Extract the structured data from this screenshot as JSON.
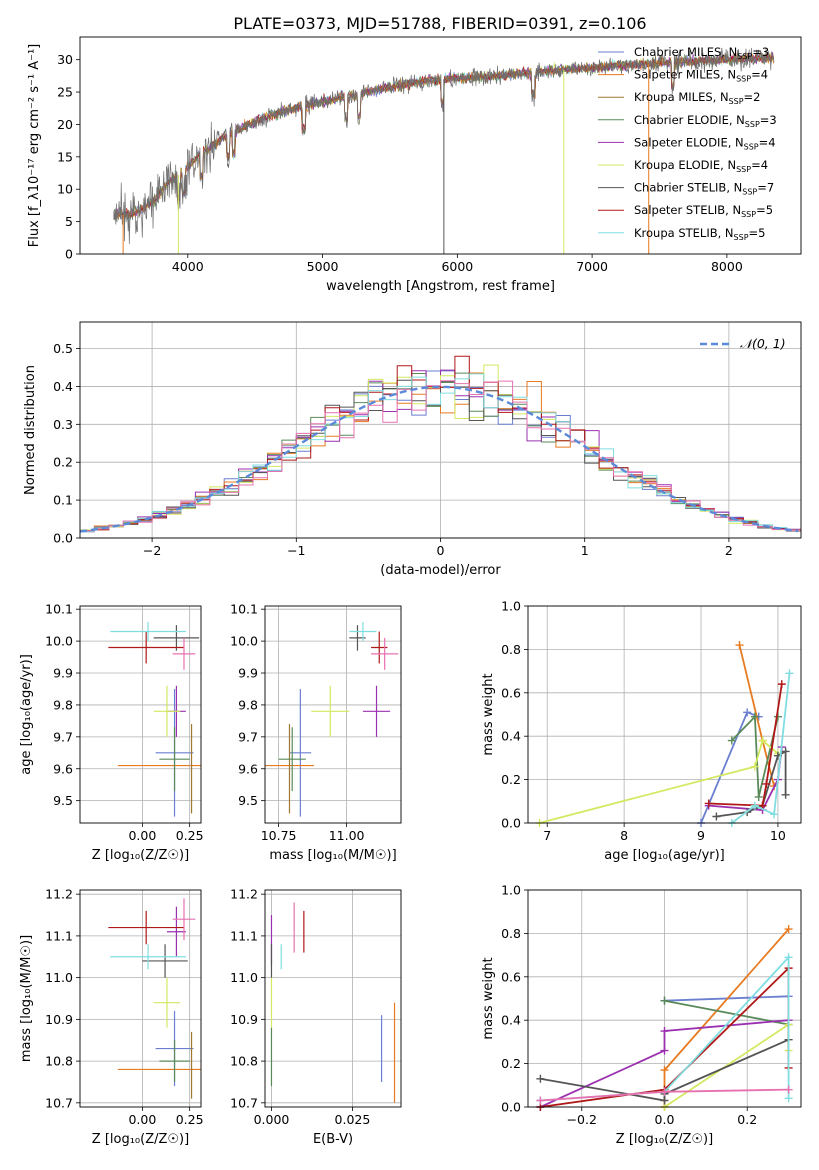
{
  "suptitle": "PLATE=0373, MJD=51788, FIBERID=0391, z=0.106",
  "colors": {
    "Chabrier MILES": "#6a7fd0",
    "Salpeter MILES": "#e87a20",
    "Kroupa MILES": "#a07830",
    "Chabrier ELODIE": "#5a8a5a",
    "Salpeter ELODIE": "#9a30b0",
    "Kroupa ELODIE": "#d4e860",
    "Chabrier STELIB": "#555555",
    "Salpeter STELIB": "#b01818",
    "Kroupa STELIB": "#80dde0",
    "pink": "#e870b0",
    "normal": "#5b8bd8",
    "grid": "#b0b0b0"
  },
  "chart_data": [
    {
      "type": "line",
      "panel": "spectrum",
      "xlabel": "wavelength [Angstrom, rest frame]",
      "ylabel": "Flux [f_λ10⁻¹⁷ erg cm⁻² s⁻¹ A⁻¹]",
      "xlim": [
        3200,
        8550
      ],
      "ylim": [
        0,
        33.5
      ],
      "xticks": [
        "4000",
        "5000",
        "6000",
        "7000",
        "8000"
      ],
      "yticks": [
        "0",
        "5",
        "10",
        "15",
        "20",
        "25",
        "30"
      ],
      "continuum": {
        "x": [
          3450,
          3550,
          3650,
          3750,
          3850,
          3950,
          4100,
          4300,
          4500,
          4700,
          4900,
          5100,
          5300,
          5500,
          5700,
          5900,
          6100,
          6300,
          6500,
          6700,
          6900,
          7100,
          7300,
          7500,
          7800,
          8100,
          8350
        ],
        "y": [
          6.2,
          6.0,
          6.8,
          8.2,
          11.0,
          12.5,
          15.5,
          18.5,
          20.5,
          22.0,
          23.0,
          24.0,
          24.8,
          25.8,
          26.5,
          27.0,
          27.2,
          27.5,
          28.0,
          28.3,
          28.6,
          28.9,
          29.2,
          29.5,
          29.8,
          30.2,
          30.3
        ]
      },
      "legend": {
        "placement": "upper right",
        "entries": [
          "Chabrier MILES, N_SSP=3",
          "Salpeter MILES, N_SSP=4",
          "Kroupa MILES, N_SSP=2",
          "Chabrier ELODIE, N_SSP=3",
          "Salpeter ELODIE, N_SSP=4",
          "Kroupa ELODIE, N_SSP=4",
          "Chabrier STELIB, N_SSP=7",
          "Salpeter STELIB, N_SSP=5",
          "Kroupa STELIB, N_SSP=5"
        ]
      },
      "legend_items": [
        {
          "base": "Chabrier MILES, N",
          "sub": "SSP",
          "tail": "=3",
          "color": "#6a7fd0"
        },
        {
          "base": "Salpeter MILES, N",
          "sub": "SSP",
          "tail": "=4",
          "color": "#e87a20"
        },
        {
          "base": "Kroupa MILES, N",
          "sub": "SSP",
          "tail": "=2",
          "color": "#a07830"
        },
        {
          "base": "Chabrier ELODIE, N",
          "sub": "SSP",
          "tail": "=3",
          "color": "#5a8a5a"
        },
        {
          "base": "Salpeter ELODIE, N",
          "sub": "SSP",
          "tail": "=4",
          "color": "#9a30b0"
        },
        {
          "base": "Kroupa ELODIE, N",
          "sub": "SSP",
          "tail": "=4",
          "color": "#d4e860"
        },
        {
          "base": "Chabrier STELIB, N",
          "sub": "SSP",
          "tail": "=7",
          "color": "#555555"
        },
        {
          "base": "Salpeter STELIB, N",
          "sub": "SSP",
          "tail": "=5",
          "color": "#b01818"
        },
        {
          "base": "Kroupa STELIB, N",
          "sub": "SSP",
          "tail": "=5",
          "color": "#80dde0"
        }
      ]
    },
    {
      "type": "line",
      "panel": "residuals",
      "xlabel": "(data-model)/error",
      "ylabel": "Normed distribution",
      "xlim": [
        -2.5,
        2.5
      ],
      "ylim": [
        0,
        0.57
      ],
      "xticks": [
        "−2",
        "−1",
        "0",
        "1",
        "2"
      ],
      "yticks": [
        "0.0",
        "0.1",
        "0.2",
        "0.3",
        "0.4",
        "0.5"
      ],
      "legend": [
        "𝒩(0, 1)"
      ],
      "bin_width": 0.1
    },
    {
      "type": "scatter",
      "panel": "age-vs-Z",
      "xlabel": "Z [log₁₀(Z/Z☉)]",
      "ylabel": "age  [log₁₀(age/yr)]",
      "xlim": [
        -0.33,
        0.31
      ],
      "ylim": [
        9.43,
        10.11
      ],
      "xticks": [
        "0.00",
        "0.25"
      ],
      "yticks": [
        "9.5",
        "9.6",
        "9.7",
        "9.8",
        "9.9",
        "10.0",
        "10.1"
      ],
      "points": [
        {
          "model": "Chabrier MILES",
          "x": 0.17,
          "y": 9.65,
          "xerr": 0.1,
          "yerr": 0.2
        },
        {
          "model": "Salpeter MILES",
          "x": 0.12,
          "y": 9.61,
          "xerr": 0.25,
          "yerr": 0.0
        },
        {
          "model": "Kroupa MILES",
          "x": 0.26,
          "y": 9.6,
          "xerr": 0.0,
          "yerr": 0.14
        },
        {
          "model": "Chabrier ELODIE",
          "x": 0.17,
          "y": 9.63,
          "xerr": 0.08,
          "yerr": 0.1
        },
        {
          "model": "Salpeter ELODIE",
          "x": 0.18,
          "y": 9.78,
          "xerr": 0.05,
          "yerr": 0.08
        },
        {
          "model": "Kroupa ELODIE",
          "x": 0.13,
          "y": 9.78,
          "xerr": 0.07,
          "yerr": 0.08
        },
        {
          "model": "Chabrier STELIB",
          "x": 0.18,
          "y": 10.01,
          "xerr": 0.12,
          "yerr": 0.04
        },
        {
          "model": "Salpeter STELIB",
          "x": 0.02,
          "y": 9.98,
          "xerr": 0.2,
          "yerr": 0.05
        },
        {
          "model": "Kroupa STELIB",
          "x": 0.03,
          "y": 10.03,
          "xerr": 0.2,
          "yerr": 0.03
        },
        {
          "model": "pink",
          "x": 0.22,
          "y": 9.96,
          "xerr": 0.06,
          "yerr": 0.05
        }
      ]
    },
    {
      "type": "scatter",
      "panel": "age-vs-mass",
      "xlabel": "mass [log₁₀(M/M☉)]",
      "ylabel": "",
      "xlim": [
        10.7,
        11.2
      ],
      "ylim": [
        9.43,
        10.11
      ],
      "xticks": [
        "10.75",
        "11.00"
      ],
      "yticks": [
        "9.5",
        "9.6",
        "9.7",
        "9.8",
        "9.9",
        "10.0",
        "10.1"
      ],
      "points": [
        {
          "model": "Chabrier MILES",
          "x": 10.83,
          "y": 9.65,
          "xerr": 0.04,
          "yerr": 0.2
        },
        {
          "model": "Salpeter MILES",
          "x": 10.78,
          "y": 9.61,
          "xerr": 0.1,
          "yerr": 0.0
        },
        {
          "model": "Kroupa MILES",
          "x": 10.79,
          "y": 9.6,
          "xerr": 0.0,
          "yerr": 0.14
        },
        {
          "model": "Chabrier ELODIE",
          "x": 10.8,
          "y": 9.63,
          "xerr": 0.05,
          "yerr": 0.1
        },
        {
          "model": "Salpeter ELODIE",
          "x": 11.11,
          "y": 9.78,
          "xerr": 0.05,
          "yerr": 0.08
        },
        {
          "model": "Kroupa ELODIE",
          "x": 10.94,
          "y": 9.78,
          "xerr": 0.07,
          "yerr": 0.08
        },
        {
          "model": "Chabrier STELIB",
          "x": 11.04,
          "y": 10.01,
          "xerr": 0.03,
          "yerr": 0.04
        },
        {
          "model": "Salpeter STELIB",
          "x": 11.12,
          "y": 9.98,
          "xerr": 0.03,
          "yerr": 0.05
        },
        {
          "model": "Kroupa STELIB",
          "x": 11.06,
          "y": 10.03,
          "xerr": 0.05,
          "yerr": 0.03
        },
        {
          "model": "pink",
          "x": 11.14,
          "y": 9.96,
          "xerr": 0.05,
          "yerr": 0.05
        }
      ]
    },
    {
      "type": "line",
      "panel": "weight-vs-age",
      "xlabel": "age  [log₁₀(age/yr)]",
      "ylabel": "mass weight",
      "xlim": [
        6.75,
        10.3
      ],
      "ylim": [
        0,
        1
      ],
      "xticks": [
        "7",
        "8",
        "9",
        "10"
      ],
      "yticks": [
        "0.0",
        "0.2",
        "0.4",
        "0.6",
        "0.8",
        "1.0"
      ],
      "series": [
        {
          "model": "Chabrier MILES",
          "x": [
            9.0,
            9.6,
            9.75
          ],
          "y": [
            0.0,
            0.51,
            0.49
          ]
        },
        {
          "model": "Salpeter MILES",
          "x": [
            9.5,
            9.8,
            9.95
          ],
          "y": [
            0.82,
            0.38,
            0.17
          ]
        },
        {
          "model": "Chabrier ELODIE",
          "x": [
            9.4,
            9.7,
            9.75,
            10.0
          ],
          "y": [
            0.38,
            0.49,
            0.12,
            0.49
          ]
        },
        {
          "model": "Salpeter ELODIE",
          "x": [
            9.1,
            9.8,
            10.0,
            10.05
          ],
          "y": [
            0.08,
            0.06,
            0.2,
            0.35
          ]
        },
        {
          "model": "Kroupa ELODIE",
          "x": [
            6.9,
            9.7,
            9.8,
            10.0
          ],
          "y": [
            0.0,
            0.26,
            0.38,
            0.32
          ]
        },
        {
          "model": "Chabrier STELIB",
          "x": [
            9.2,
            9.6,
            9.8,
            10.0,
            10.1,
            10.1
          ],
          "y": [
            0.03,
            0.05,
            0.08,
            0.31,
            0.33,
            0.13
          ]
        },
        {
          "model": "Salpeter STELIB",
          "x": [
            9.1,
            9.8,
            9.85,
            10.05
          ],
          "y": [
            0.09,
            0.08,
            0.18,
            0.64
          ]
        },
        {
          "model": "Kroupa STELIB",
          "x": [
            9.4,
            9.7,
            9.95,
            10.15
          ],
          "y": [
            0.0,
            0.08,
            0.04,
            0.69
          ]
        }
      ]
    },
    {
      "type": "scatter",
      "panel": "mass-vs-Z",
      "xlabel": "Z [log₁₀(Z/Z☉)]",
      "ylabel": "mass [log₁₀(M/M☉)]",
      "xlim": [
        -0.33,
        0.31
      ],
      "ylim": [
        10.69,
        11.21
      ],
      "xticks": [
        "0.00",
        "0.25"
      ],
      "yticks": [
        "10.7",
        "10.8",
        "10.9",
        "11.0",
        "11.1",
        "11.2"
      ],
      "points": [
        {
          "model": "Chabrier MILES",
          "x": 0.17,
          "y": 10.83,
          "xerr": 0.1,
          "yerr": 0.09
        },
        {
          "model": "Salpeter MILES",
          "x": 0.12,
          "y": 10.78,
          "xerr": 0.25,
          "yerr": 0.0
        },
        {
          "model": "Kroupa MILES",
          "x": 0.26,
          "y": 10.79,
          "xerr": 0.0,
          "yerr": 0.08
        },
        {
          "model": "Chabrier ELODIE",
          "x": 0.17,
          "y": 10.8,
          "xerr": 0.08,
          "yerr": 0.05
        },
        {
          "model": "Salpeter ELODIE",
          "x": 0.18,
          "y": 11.11,
          "xerr": 0.05,
          "yerr": 0.06
        },
        {
          "model": "Kroupa ELODIE",
          "x": 0.13,
          "y": 10.94,
          "xerr": 0.07,
          "yerr": 0.06
        },
        {
          "model": "Chabrier STELIB",
          "x": 0.12,
          "y": 11.04,
          "xerr": 0.12,
          "yerr": 0.04
        },
        {
          "model": "Salpeter STELIB",
          "x": 0.02,
          "y": 11.12,
          "xerr": 0.2,
          "yerr": 0.04
        },
        {
          "model": "Kroupa STELIB",
          "x": 0.03,
          "y": 11.05,
          "xerr": 0.2,
          "yerr": 0.03
        },
        {
          "model": "pink",
          "x": 0.22,
          "y": 11.14,
          "xerr": 0.06,
          "yerr": 0.05
        }
      ]
    },
    {
      "type": "scatter",
      "panel": "mass-vs-EBV",
      "xlabel": "E(B-V)",
      "ylabel": "",
      "xlim": [
        -0.002,
        0.04
      ],
      "ylim": [
        10.69,
        11.21
      ],
      "xticks": [
        "0.000",
        "0.025"
      ],
      "yticks": [
        "10.7",
        "10.8",
        "10.9",
        "11.0",
        "11.1",
        "11.2"
      ],
      "points": [
        {
          "model": "Chabrier MILES",
          "x": 0.034,
          "y": 10.83,
          "yerr": 0.08
        },
        {
          "model": "Salpeter MILES",
          "x": 0.038,
          "y": 10.82,
          "yerr": 0.12
        },
        {
          "model": "Chabrier ELODIE",
          "x": 0.0,
          "y": 10.81,
          "yerr": 0.07
        },
        {
          "model": "Salpeter ELODIE",
          "x": 0.0,
          "y": 11.09,
          "yerr": 0.06
        },
        {
          "model": "Kroupa ELODIE",
          "x": 0.0,
          "y": 10.94,
          "yerr": 0.06
        },
        {
          "model": "Chabrier STELIB",
          "x": 0.0,
          "y": 11.04,
          "yerr": 0.04
        },
        {
          "model": "Salpeter STELIB",
          "x": 0.01,
          "y": 11.11,
          "yerr": 0.05
        },
        {
          "model": "Kroupa STELIB",
          "x": 0.003,
          "y": 11.05,
          "yerr": 0.03
        },
        {
          "model": "pink",
          "x": 0.007,
          "y": 11.12,
          "yerr": 0.06
        }
      ]
    },
    {
      "type": "line",
      "panel": "weight-vs-Z",
      "xlabel": "Z [log₁₀(Z/Z☉)]",
      "ylabel": "mass weight",
      "xlim": [
        -0.33,
        0.33
      ],
      "ylim": [
        0,
        1
      ],
      "xticks": [
        "−0.2",
        "0.0",
        "0.2"
      ],
      "yticks": [
        "0.0",
        "0.2",
        "0.4",
        "0.6",
        "0.8",
        "1.0"
      ],
      "series": [
        {
          "model": "Chabrier MILES",
          "x": [
            0.0,
            0.3
          ],
          "y": [
            0.49,
            0.51
          ]
        },
        {
          "model": "Salpeter MILES",
          "x": [
            0.0,
            0.0,
            0.3
          ],
          "y": [
            0.0,
            0.17,
            0.82
          ]
        },
        {
          "model": "Chabrier ELODIE",
          "x": [
            0.0,
            0.3
          ],
          "y": [
            0.49,
            0.38
          ]
        },
        {
          "model": "Salpeter ELODIE",
          "x": [
            -0.3,
            0.0,
            0.0,
            0.3
          ],
          "y": [
            0.0,
            0.26,
            0.35,
            0.4
          ]
        },
        {
          "model": "Kroupa ELODIE",
          "x": [
            0.0,
            0.3,
            0.3
          ],
          "y": [
            0.0,
            0.38,
            0.26
          ]
        },
        {
          "model": "Chabrier STELIB",
          "x": [
            -0.3,
            0.0,
            0.0,
            0.3
          ],
          "y": [
            0.13,
            0.03,
            0.06,
            0.31
          ]
        },
        {
          "model": "Salpeter STELIB",
          "x": [
            -0.3,
            0.0,
            0.3,
            0.3
          ],
          "y": [
            0.0,
            0.08,
            0.64,
            0.18
          ]
        },
        {
          "model": "Kroupa STELIB",
          "x": [
            -0.3,
            0.0,
            0.3,
            0.3
          ],
          "y": [
            0.03,
            0.07,
            0.69,
            0.04
          ]
        },
        {
          "model": "pink",
          "x": [
            -0.3,
            0.0,
            0.3
          ],
          "y": [
            0.03,
            0.07,
            0.08
          ]
        }
      ]
    }
  ]
}
